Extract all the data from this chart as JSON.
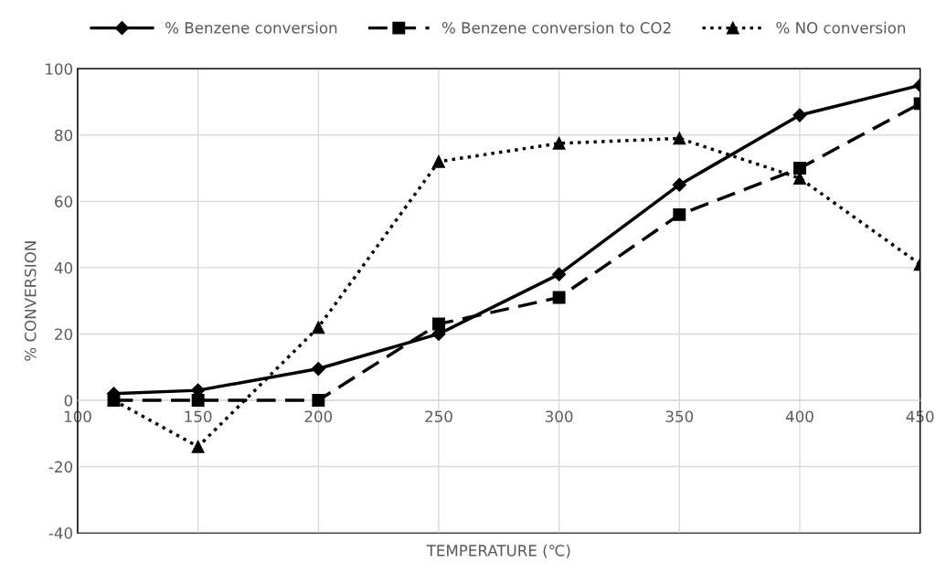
{
  "chart_data": {
    "type": "line",
    "xlabel": "TEMPERATURE (℃)",
    "ylabel": "% CONVERSION",
    "x": [
      115,
      150,
      200,
      250,
      300,
      350,
      400,
      450
    ],
    "series": [
      {
        "name": "% Benzene conversion",
        "color": "#000000",
        "marker": "diamond",
        "line_style": "solid",
        "values": [
          2,
          3,
          9.5,
          20,
          38,
          65,
          86,
          95
        ]
      },
      {
        "name": "% Benzene conversion to CO2",
        "color": "#000000",
        "marker": "square",
        "line_style": "dashed",
        "values": [
          0,
          0,
          0,
          23,
          31,
          56,
          70,
          89.5
        ]
      },
      {
        "name": "% NO conversion",
        "color": "#000000",
        "marker": "triangle",
        "line_style": "dotted",
        "values": [
          0,
          -14,
          22,
          72,
          77.5,
          79,
          67,
          41
        ]
      }
    ],
    "xlim": [
      100,
      450
    ],
    "xticks": [
      100,
      150,
      200,
      250,
      300,
      350,
      400,
      450
    ],
    "ylim": [
      -40,
      100
    ],
    "yticks": [
      -40,
      -20,
      0,
      20,
      40,
      60,
      80,
      100
    ],
    "grid": true,
    "legend": "top"
  }
}
